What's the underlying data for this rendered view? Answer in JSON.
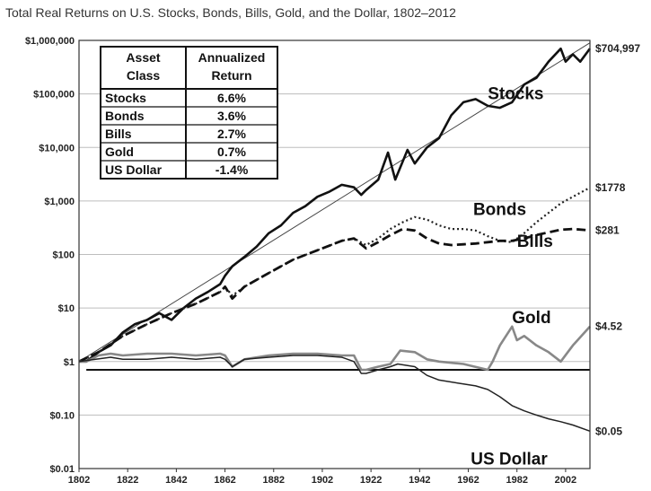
{
  "chart_data": {
    "type": "line",
    "title": "Total Real Returns on U.S. Stocks, Bonds, Bills, Gold, and the Dollar, 1802–2012",
    "y_scale": "log",
    "ylim": [
      0.01,
      1000000
    ],
    "xlim": [
      1802,
      2012
    ],
    "grid": "horizontal",
    "y_ticks": [
      {
        "value": 1000000,
        "label": "$1,000,000"
      },
      {
        "value": 100000,
        "label": "$100,000"
      },
      {
        "value": 10000,
        "label": "$10,000"
      },
      {
        "value": 1000,
        "label": "$1,000"
      },
      {
        "value": 100,
        "label": "$100"
      },
      {
        "value": 10,
        "label": "$10"
      },
      {
        "value": 1,
        "label": "$1"
      },
      {
        "value": 0.1,
        "label": "$0.10"
      },
      {
        "value": 0.01,
        "label": "$0.01"
      }
    ],
    "x_ticks": [
      {
        "value": 1802,
        "label": "1802"
      },
      {
        "value": 1822,
        "label": "1822"
      },
      {
        "value": 1842,
        "label": "1842"
      },
      {
        "value": 1862,
        "label": "1862"
      },
      {
        "value": 1882,
        "label": "1882"
      },
      {
        "value": 1902,
        "label": "1902"
      },
      {
        "value": 1922,
        "label": "1922"
      },
      {
        "value": 1942,
        "label": "1942"
      },
      {
        "value": 1962,
        "label": "1962"
      },
      {
        "value": 1982,
        "label": "1982"
      },
      {
        "value": 2002,
        "label": "2002"
      }
    ],
    "series": [
      {
        "name": "Stocks",
        "style": "solid-thick",
        "color": "#111111",
        "end_label": "$704,997",
        "x": [
          1802,
          1805,
          1810,
          1815,
          1820,
          1825,
          1830,
          1835,
          1840,
          1845,
          1850,
          1855,
          1860,
          1862,
          1865,
          1870,
          1875,
          1880,
          1885,
          1890,
          1895,
          1900,
          1905,
          1910,
          1915,
          1918,
          1920,
          1925,
          1929,
          1932,
          1937,
          1940,
          1945,
          1950,
          1955,
          1960,
          1965,
          1970,
          1975,
          1980,
          1985,
          1990,
          1995,
          2000,
          2002,
          2005,
          2008,
          2012
        ],
        "values": [
          1,
          1,
          1.5,
          2,
          3.5,
          5,
          6,
          8,
          6,
          10,
          15,
          20,
          28,
          40,
          60,
          90,
          140,
          250,
          350,
          600,
          800,
          1200,
          1500,
          2000,
          1800,
          1300,
          1600,
          2500,
          8000,
          2500,
          9000,
          5000,
          10000,
          15000,
          40000,
          70000,
          80000,
          60000,
          55000,
          70000,
          150000,
          200000,
          400000,
          700000,
          400000,
          550000,
          400000,
          704997
        ]
      },
      {
        "name": "Bonds",
        "style": "dotted",
        "color": "#222222",
        "end_label": "$1778",
        "x": [
          1802,
          1810,
          1820,
          1830,
          1840,
          1850,
          1860,
          1862,
          1865,
          1870,
          1880,
          1890,
          1900,
          1910,
          1915,
          1920,
          1925,
          1930,
          1935,
          1940,
          1945,
          1950,
          1955,
          1960,
          1965,
          1970,
          1975,
          1980,
          1985,
          1990,
          1995,
          2000,
          2005,
          2012
        ],
        "values": [
          1,
          1.5,
          3,
          5,
          8,
          12,
          20,
          25,
          17,
          25,
          45,
          80,
          120,
          180,
          200,
          150,
          200,
          300,
          400,
          500,
          450,
          350,
          300,
          300,
          280,
          220,
          180,
          170,
          250,
          400,
          600,
          900,
          1200,
          1778
        ]
      },
      {
        "name": "Bills",
        "style": "dashed",
        "color": "#111111",
        "end_label": "$281",
        "x": [
          1802,
          1810,
          1820,
          1830,
          1840,
          1850,
          1860,
          1862,
          1865,
          1870,
          1880,
          1890,
          1900,
          1910,
          1915,
          1920,
          1925,
          1930,
          1935,
          1940,
          1945,
          1950,
          1955,
          1960,
          1965,
          1970,
          1975,
          1980,
          1985,
          1990,
          1995,
          2000,
          2005,
          2012
        ],
        "values": [
          1,
          1.5,
          3,
          5,
          8,
          12,
          20,
          25,
          15,
          25,
          45,
          80,
          120,
          180,
          200,
          130,
          170,
          230,
          300,
          280,
          200,
          160,
          150,
          155,
          160,
          170,
          180,
          180,
          200,
          230,
          260,
          290,
          300,
          281
        ]
      },
      {
        "name": "Gold",
        "style": "solid-gray",
        "color": "#888888",
        "end_label": "$4.52",
        "x": [
          1802,
          1805,
          1810,
          1815,
          1820,
          1830,
          1840,
          1850,
          1860,
          1862,
          1865,
          1870,
          1880,
          1890,
          1900,
          1910,
          1915,
          1918,
          1920,
          1925,
          1930,
          1934,
          1940,
          1945,
          1950,
          1960,
          1970,
          1972,
          1975,
          1980,
          1982,
          1985,
          1990,
          1995,
          2000,
          2005,
          2012
        ],
        "values": [
          1,
          1,
          1.3,
          1.4,
          1.3,
          1.4,
          1.4,
          1.3,
          1.4,
          1.3,
          0.8,
          1.1,
          1.3,
          1.4,
          1.4,
          1.3,
          1.3,
          0.7,
          0.7,
          0.8,
          0.9,
          1.6,
          1.5,
          1.1,
          1,
          0.9,
          0.7,
          1,
          2,
          4.5,
          2.5,
          3,
          2,
          1.5,
          1,
          2,
          4.52
        ]
      },
      {
        "name": "US Dollar",
        "style": "solid-thin",
        "color": "#222222",
        "end_label": "$0.05",
        "x": [
          1802,
          1815,
          1820,
          1830,
          1840,
          1850,
          1860,
          1862,
          1865,
          1870,
          1880,
          1890,
          1900,
          1910,
          1915,
          1918,
          1920,
          1925,
          1930,
          1933,
          1940,
          1945,
          1950,
          1960,
          1965,
          1970,
          1975,
          1980,
          1985,
          1990,
          1995,
          2000,
          2005,
          2012
        ],
        "values": [
          1,
          1.2,
          1.1,
          1.1,
          1.2,
          1.1,
          1.2,
          1.1,
          0.8,
          1.1,
          1.2,
          1.3,
          1.3,
          1.2,
          1,
          0.6,
          0.6,
          0.7,
          0.8,
          0.9,
          0.8,
          0.55,
          0.45,
          0.38,
          0.35,
          0.3,
          0.22,
          0.15,
          0.12,
          0.1,
          0.085,
          0.075,
          0.065,
          0.05
        ]
      }
    ],
    "reference_line": {
      "value": 0.7,
      "x_start": 1805,
      "x_end": 2012
    },
    "trend_line": {
      "x": [
        1802,
        2012
      ],
      "values": [
        1,
        900000
      ]
    },
    "series_labels": [
      {
        "text": "Stocks",
        "x": 1970,
        "y": 80000
      },
      {
        "text": "Bonds",
        "x": 1964,
        "y": 550
      },
      {
        "text": "Bills",
        "x": 1982,
        "y": 140
      },
      {
        "text": "Gold",
        "x": 1980,
        "y": 5.2
      },
      {
        "text": "US Dollar",
        "x": 1963,
        "y": 0.012
      }
    ],
    "table": {
      "headers": [
        [
          "Asset",
          "Class"
        ],
        [
          "Annualized",
          "Return"
        ]
      ],
      "rows": [
        [
          "Stocks",
          "6.6%"
        ],
        [
          "Bonds",
          "3.6%"
        ],
        [
          "Bills",
          "2.7%"
        ],
        [
          "Gold",
          "0.7%"
        ],
        [
          "US Dollar",
          "-1.4%"
        ]
      ]
    }
  }
}
